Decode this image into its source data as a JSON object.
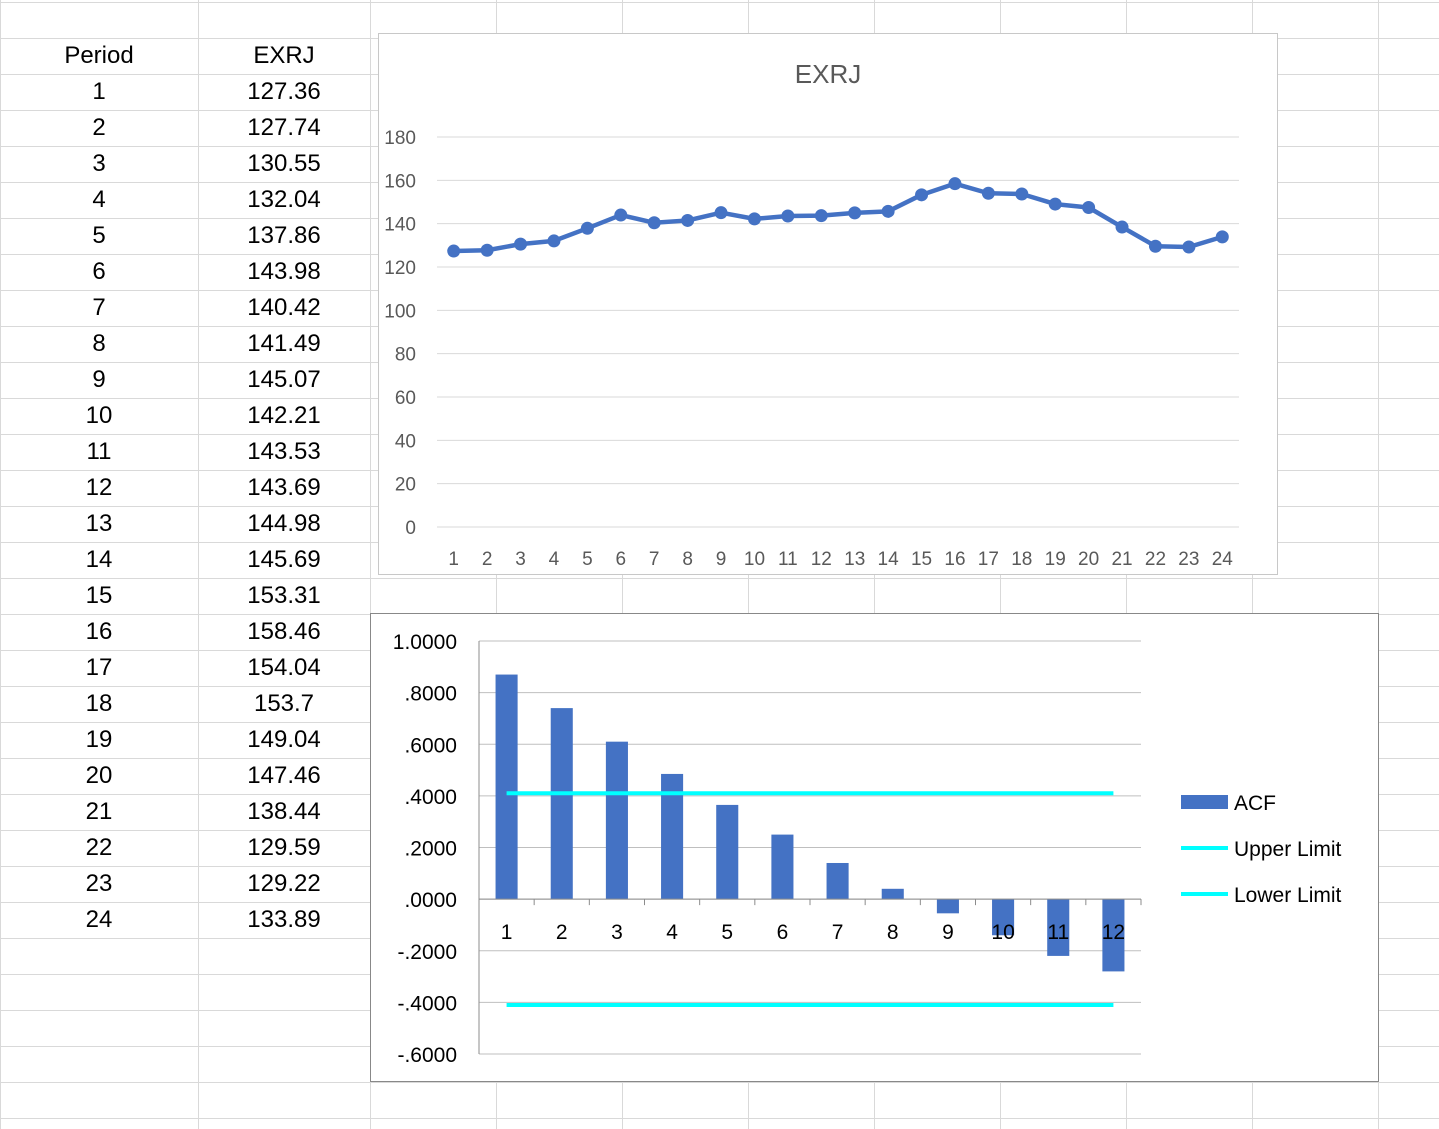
{
  "table": {
    "headers": [
      "Period",
      "EXRJ"
    ],
    "rows": [
      [
        "1",
        "127.36"
      ],
      [
        "2",
        "127.74"
      ],
      [
        "3",
        "130.55"
      ],
      [
        "4",
        "132.04"
      ],
      [
        "5",
        "137.86"
      ],
      [
        "6",
        "143.98"
      ],
      [
        "7",
        "140.42"
      ],
      [
        "8",
        "141.49"
      ],
      [
        "9",
        "145.07"
      ],
      [
        "10",
        "142.21"
      ],
      [
        "11",
        "143.53"
      ],
      [
        "12",
        "143.69"
      ],
      [
        "13",
        "144.98"
      ],
      [
        "14",
        "145.69"
      ],
      [
        "15",
        "153.31"
      ],
      [
        "16",
        "158.46"
      ],
      [
        "17",
        "154.04"
      ],
      [
        "18",
        "153.7"
      ],
      [
        "19",
        "149.04"
      ],
      [
        "20",
        "147.46"
      ],
      [
        "21",
        "138.44"
      ],
      [
        "22",
        "129.59"
      ],
      [
        "23",
        "129.22"
      ],
      [
        "24",
        "133.89"
      ]
    ]
  },
  "chart_data": [
    {
      "type": "line",
      "title": "EXRJ",
      "xlabel": "",
      "ylabel": "",
      "categories": [
        "1",
        "2",
        "3",
        "4",
        "5",
        "6",
        "7",
        "8",
        "9",
        "10",
        "11",
        "12",
        "13",
        "14",
        "15",
        "16",
        "17",
        "18",
        "19",
        "20",
        "21",
        "22",
        "23",
        "24"
      ],
      "series": [
        {
          "values": [
            127.36,
            127.74,
            130.55,
            132.04,
            137.86,
            143.98,
            140.42,
            141.49,
            145.07,
            142.21,
            143.53,
            143.69,
            144.98,
            145.69,
            153.31,
            158.46,
            154.04,
            153.7,
            149.04,
            147.46,
            138.44,
            129.59,
            129.22,
            133.89
          ],
          "color": "#4472c4",
          "markers": true
        }
      ],
      "ylim": [
        0,
        180
      ],
      "yticks": [
        "0",
        "20",
        "40",
        "60",
        "80",
        "100",
        "120",
        "140",
        "160",
        "180"
      ],
      "grid": true,
      "legend": "none"
    },
    {
      "type": "bar",
      "title": "",
      "xlabel": "",
      "ylabel": "",
      "categories": [
        "1",
        "2",
        "3",
        "4",
        "5",
        "6",
        "7",
        "8",
        "9",
        "10",
        "11",
        "12"
      ],
      "series": [
        {
          "name": "ACF",
          "type": "bar",
          "color": "#4472c4",
          "values": [
            0.87,
            0.74,
            0.61,
            0.485,
            0.365,
            0.25,
            0.14,
            0.04,
            -0.055,
            -0.14,
            -0.22,
            -0.28
          ]
        },
        {
          "name": "Upper Limit",
          "type": "line",
          "color": "#00ffff",
          "values": [
            0.41,
            0.41,
            0.41,
            0.41,
            0.41,
            0.41,
            0.41,
            0.41,
            0.41,
            0.41,
            0.41,
            0.41
          ]
        },
        {
          "name": "Lower Limit",
          "type": "line",
          "color": "#00ffff",
          "values": [
            -0.41,
            -0.41,
            -0.41,
            -0.41,
            -0.41,
            -0.41,
            -0.41,
            -0.41,
            -0.41,
            -0.41,
            -0.41,
            -0.41
          ]
        }
      ],
      "ylim": [
        -0.6,
        1.0
      ],
      "yticks": [
        "1.0000",
        ".8000",
        ".6000",
        ".4000",
        ".2000",
        ".0000",
        "-.2000",
        "-.4000",
        "-.6000"
      ],
      "grid": true,
      "legend": "right"
    }
  ]
}
